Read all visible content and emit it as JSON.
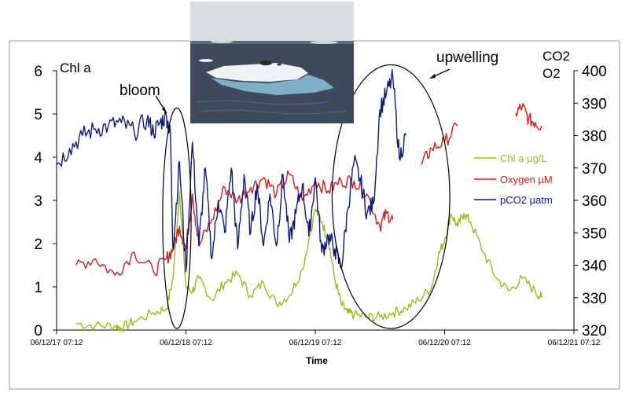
{
  "colors": {
    "chl": "#9bbb1c",
    "oxygen": "#d41a1a",
    "pco2": "#0d1a7a",
    "axis": "#000000",
    "frame": "#9a9a9a",
    "sea": "#3e4a5c",
    "sky": "#d9dde2",
    "ice": "#eef3f6"
  },
  "photo": {
    "description_icon": "iceberg-photo-icon"
  },
  "chart_data": {
    "type": "line",
    "xlabel": "Time",
    "ylabel_left": "Chl a",
    "ylabel_right_1": "CO2",
    "ylabel_right_2": "O2",
    "x_ticks": [
      "06/12/17 07:12",
      "06/12/18 07:12",
      "06/12/19 07:12",
      "06/12/20 07:12",
      "06/12/21 07:12"
    ],
    "x_range_days": [
      0,
      4
    ],
    "ylim_left": [
      0,
      6
    ],
    "yticks_left": [
      "0",
      "1",
      "2",
      "3",
      "4",
      "5",
      "6"
    ],
    "ylim_right": [
      320,
      400
    ],
    "yticks_right": [
      "320",
      "330",
      "340",
      "350",
      "360",
      "370",
      "380",
      "390",
      "400"
    ],
    "annotations": [
      {
        "text": "bloom",
        "ellipse_x_days": [
          0.82,
          1.04
        ],
        "ellipse_y_left": [
          0,
          5.1
        ]
      },
      {
        "text": "upwelling",
        "ellipse_x_days": [
          2.13,
          3.04
        ],
        "ellipse_y_left": [
          0,
          6.1
        ]
      }
    ],
    "legend": {
      "position": "right"
    },
    "series": [
      {
        "name": "Chl a µg/L",
        "axis": "left",
        "x": [
          0.15,
          0.3,
          0.45,
          0.5,
          0.6,
          0.75,
          0.85,
          0.9,
          0.95,
          1.0,
          1.05,
          1.1,
          1.2,
          1.3,
          1.4,
          1.5,
          1.6,
          1.7,
          1.8,
          1.9,
          2.0,
          2.05,
          2.1,
          2.15,
          2.2,
          2.25,
          2.3,
          2.4,
          2.5,
          2.6,
          2.7,
          2.8,
          2.9,
          2.95,
          3.0,
          3.05,
          3.1,
          3.15,
          3.2,
          3.3,
          3.4,
          3.5,
          3.6,
          3.7,
          3.75
        ],
        "y": [
          0.15,
          0.1,
          0.1,
          0.05,
          0.2,
          0.4,
          0.5,
          1.2,
          3.2,
          1.0,
          0.9,
          1.2,
          0.7,
          1.1,
          1.3,
          0.8,
          1.1,
          0.6,
          0.8,
          1.4,
          2.8,
          2.5,
          2.1,
          1.2,
          0.6,
          0.4,
          0.35,
          0.3,
          0.3,
          0.4,
          0.5,
          0.7,
          1.0,
          1.7,
          2.1,
          2.7,
          2.4,
          2.7,
          2.5,
          1.8,
          1.2,
          0.9,
          1.2,
          0.9,
          0.75
        ]
      },
      {
        "name": "Oxygen µM",
        "axis": "right",
        "x": [
          0.15,
          0.3,
          0.45,
          0.6,
          0.75,
          0.85,
          0.9,
          0.95,
          1.0,
          1.05,
          1.1,
          1.2,
          1.3,
          1.4,
          1.5,
          1.6,
          1.7,
          1.8,
          1.9,
          2.0,
          2.1,
          2.2,
          2.3,
          2.4,
          2.5,
          2.55,
          2.6
        ],
        "y": [
          340,
          342,
          337,
          344,
          338,
          342,
          345,
          352,
          345,
          362,
          346,
          354,
          364,
          360,
          364,
          367,
          362,
          368,
          360,
          366,
          363,
          366,
          366,
          362,
          352,
          356,
          354
        ]
      },
      {
        "name": "Oxygen µM",
        "axis": "right",
        "x": [
          2.82,
          2.9,
          3.0,
          3.1
        ],
        "y": [
          371,
          376,
          378,
          383
        ]
      },
      {
        "name": "Oxygen µM",
        "axis": "right",
        "x": [
          3.55,
          3.6,
          3.65,
          3.7,
          3.75
        ],
        "y": [
          387,
          389,
          385,
          384,
          383
        ]
      },
      {
        "name": "pCO2 µatm",
        "axis": "right",
        "x": [
          0.0,
          0.1,
          0.2,
          0.3,
          0.4,
          0.5,
          0.6,
          0.7,
          0.75,
          0.8,
          0.85,
          0.88,
          0.9,
          0.95,
          1.0,
          1.05,
          1.1,
          1.15,
          1.2,
          1.25,
          1.3,
          1.35,
          1.4,
          1.45,
          1.5,
          1.55,
          1.6,
          1.65,
          1.7,
          1.75,
          1.8,
          1.85,
          1.9,
          1.95,
          2.0,
          2.05,
          2.1,
          2.15,
          2.2,
          2.25,
          2.3,
          2.35,
          2.4,
          2.45,
          2.5,
          2.55,
          2.6,
          2.65,
          2.7
        ],
        "y": [
          371,
          376,
          380,
          382,
          383,
          384,
          381,
          385,
          381,
          384,
          386,
          380,
          345,
          372,
          338,
          378,
          346,
          370,
          342,
          360,
          350,
          370,
          345,
          368,
          350,
          365,
          346,
          362,
          346,
          368,
          347,
          356,
          365,
          349,
          367,
          344,
          349,
          345,
          339,
          357,
          372,
          366,
          356,
          359,
          388,
          393,
          398,
          373,
          380
        ]
      }
    ]
  }
}
